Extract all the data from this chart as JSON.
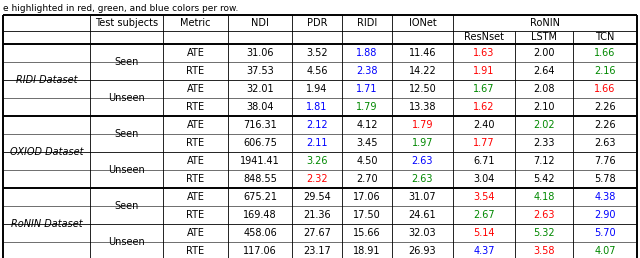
{
  "caption": "e highlighted in red, green, and blue colors per row.",
  "col_keys": [
    "NDI",
    "PDR",
    "RIDI",
    "IONet",
    "ResNset",
    "LSTM",
    "TCN"
  ],
  "color_map": {
    "black": "black",
    "red": "#ff0000",
    "green": "#008800",
    "blue": "#0000ff"
  },
  "dataset_labels": [
    "RIDI Dataset",
    "OXIOD Dataset",
    "RoNIN Dataset"
  ],
  "rows_data": [
    {
      "metric": "ATE",
      "NDI": "31.06",
      "PDR": "3.52",
      "RIDI": "1.88",
      "IONet": "11.46",
      "ResNset": "1.63",
      "LSTM": "2.00",
      "TCN": "1.66",
      "colors": {
        "NDI": "black",
        "PDR": "black",
        "RIDI": "blue",
        "IONet": "black",
        "ResNset": "red",
        "LSTM": "black",
        "TCN": "green"
      }
    },
    {
      "metric": "RTE",
      "NDI": "37.53",
      "PDR": "4.56",
      "RIDI": "2.38",
      "IONet": "14.22",
      "ResNset": "1.91",
      "LSTM": "2.64",
      "TCN": "2.16",
      "colors": {
        "NDI": "black",
        "PDR": "black",
        "RIDI": "blue",
        "IONet": "black",
        "ResNset": "red",
        "LSTM": "black",
        "TCN": "green"
      }
    },
    {
      "metric": "ATE",
      "NDI": "32.01",
      "PDR": "1.94",
      "RIDI": "1.71",
      "IONet": "12.50",
      "ResNset": "1.67",
      "LSTM": "2.08",
      "TCN": "1.66",
      "colors": {
        "NDI": "black",
        "PDR": "black",
        "RIDI": "blue",
        "IONet": "black",
        "ResNset": "green",
        "LSTM": "black",
        "TCN": "red"
      }
    },
    {
      "metric": "RTE",
      "NDI": "38.04",
      "PDR": "1.81",
      "RIDI": "1.79",
      "IONet": "13.38",
      "ResNset": "1.62",
      "LSTM": "2.10",
      "TCN": "2.26",
      "colors": {
        "NDI": "black",
        "PDR": "blue",
        "RIDI": "green",
        "IONet": "black",
        "ResNset": "red",
        "LSTM": "black",
        "TCN": "black"
      }
    },
    {
      "metric": "ATE",
      "NDI": "716.31",
      "PDR": "2.12",
      "RIDI": "4.12",
      "IONet": "1.79",
      "ResNset": "2.40",
      "LSTM": "2.02",
      "TCN": "2.26",
      "colors": {
        "NDI": "black",
        "PDR": "blue",
        "RIDI": "black",
        "IONet": "red",
        "ResNset": "black",
        "LSTM": "green",
        "TCN": "black"
      }
    },
    {
      "metric": "RTE",
      "NDI": "606.75",
      "PDR": "2.11",
      "RIDI": "3.45",
      "IONet": "1.97",
      "ResNset": "1.77",
      "LSTM": "2.33",
      "TCN": "2.63",
      "colors": {
        "NDI": "black",
        "PDR": "blue",
        "RIDI": "black",
        "IONet": "green",
        "ResNset": "red",
        "LSTM": "black",
        "TCN": "black"
      }
    },
    {
      "metric": "ATE",
      "NDI": "1941.41",
      "PDR": "3.26",
      "RIDI": "4.50",
      "IONet": "2.63",
      "ResNset": "6.71",
      "LSTM": "7.12",
      "TCN": "7.76",
      "colors": {
        "NDI": "black",
        "PDR": "green",
        "RIDI": "black",
        "IONet": "blue",
        "ResNset": "black",
        "LSTM": "black",
        "TCN": "black"
      }
    },
    {
      "metric": "RTE",
      "NDI": "848.55",
      "PDR": "2.32",
      "RIDI": "2.70",
      "IONet": "2.63",
      "ResNset": "3.04",
      "LSTM": "5.42",
      "TCN": "5.78",
      "colors": {
        "NDI": "black",
        "PDR": "red",
        "RIDI": "black",
        "IONet": "green",
        "ResNset": "black",
        "LSTM": "black",
        "TCN": "black"
      }
    },
    {
      "metric": "ATE",
      "NDI": "675.21",
      "PDR": "29.54",
      "RIDI": "17.06",
      "IONet": "31.07",
      "ResNset": "3.54",
      "LSTM": "4.18",
      "TCN": "4.38",
      "colors": {
        "NDI": "black",
        "PDR": "black",
        "RIDI": "black",
        "IONet": "black",
        "ResNset": "red",
        "LSTM": "green",
        "TCN": "blue"
      }
    },
    {
      "metric": "RTE",
      "NDI": "169.48",
      "PDR": "21.36",
      "RIDI": "17.50",
      "IONet": "24.61",
      "ResNset": "2.67",
      "LSTM": "2.63",
      "TCN": "2.90",
      "colors": {
        "NDI": "black",
        "PDR": "black",
        "RIDI": "black",
        "IONet": "black",
        "ResNset": "green",
        "LSTM": "red",
        "TCN": "blue"
      }
    },
    {
      "metric": "ATE",
      "NDI": "458.06",
      "PDR": "27.67",
      "RIDI": "15.66",
      "IONet": "32.03",
      "ResNset": "5.14",
      "LSTM": "5.32",
      "TCN": "5.70",
      "colors": {
        "NDI": "black",
        "PDR": "black",
        "RIDI": "black",
        "IONet": "black",
        "ResNset": "red",
        "LSTM": "green",
        "TCN": "blue"
      }
    },
    {
      "metric": "RTE",
      "NDI": "117.06",
      "PDR": "23.17",
      "RIDI": "18.91",
      "IONet": "26.93",
      "ResNset": "4.37",
      "LSTM": "3.58",
      "TCN": "4.07",
      "colors": {
        "NDI": "black",
        "PDR": "black",
        "RIDI": "black",
        "IONet": "black",
        "ResNset": "blue",
        "LSTM": "red",
        "TCN": "green"
      }
    }
  ]
}
